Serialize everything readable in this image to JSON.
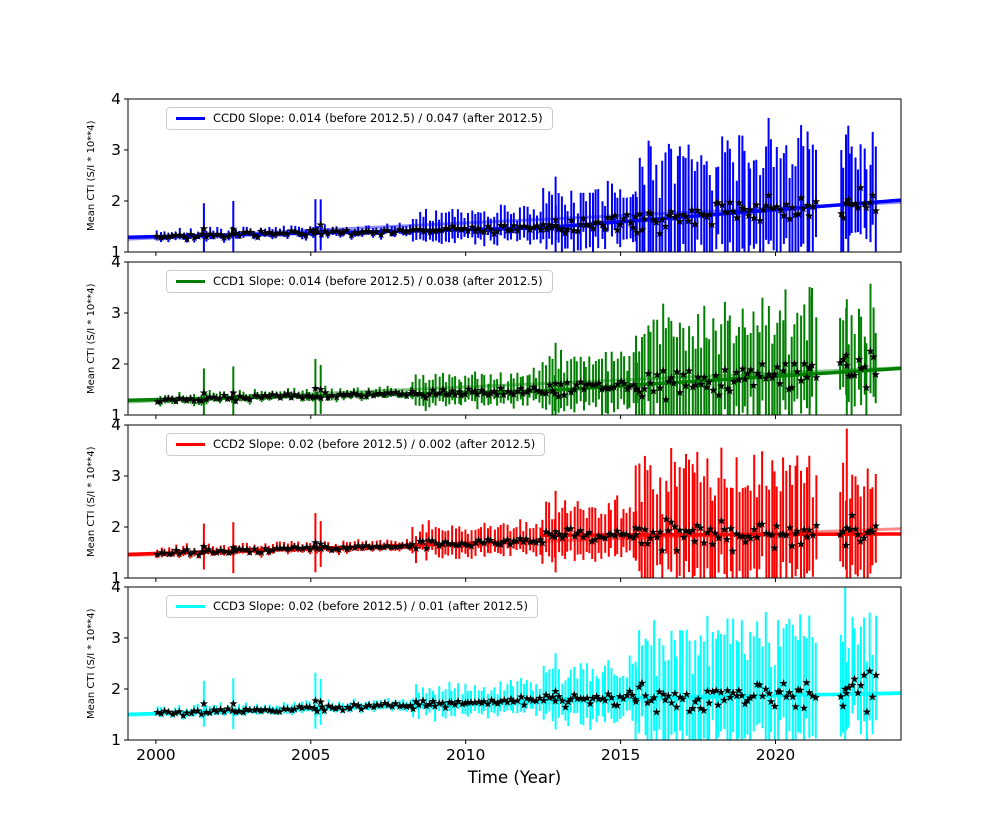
{
  "chart_data": {
    "type": "errorbar",
    "title": "",
    "xlabel": "Time (Year)",
    "ylabel": "Mean CTI (S/I * 10**4)",
    "x_ticks": [
      2000,
      2005,
      2010,
      2015,
      2020
    ],
    "y_ticks": [
      1,
      2,
      3,
      4
    ],
    "x_range": [
      1999.1,
      2024.05
    ],
    "y_range": [
      1,
      4
    ],
    "grid": false,
    "legend_position": "upper left",
    "break_year": 2012.5,
    "data_gap_years": [
      2021.3,
      2022.1
    ],
    "marker": "star",
    "marker_color": "#000000",
    "eras": [
      {
        "t0": 2000.05,
        "t1": 2008.3,
        "step": 0.12,
        "err": 0.09,
        "jitter": 0.035
      },
      {
        "t0": 2008.3,
        "t1": 2012.5,
        "step": 0.105,
        "err": 0.26,
        "jitter": 0.05
      },
      {
        "t0": 2012.5,
        "t1": 2015.5,
        "step": 0.1,
        "err": 0.45,
        "jitter": 0.09
      },
      {
        "t0": 2015.5,
        "t1": 2021.3,
        "step": 0.095,
        "err": 0.95,
        "jitter": 0.19
      },
      {
        "t0": 2022.1,
        "t1": 2023.25,
        "step": 0.095,
        "err": 0.85,
        "jitter": 0.25
      }
    ],
    "panels": [
      {
        "name": "CCD0",
        "color": "#0000FF",
        "legend": "CCD0 Slope: 0.014 (before 2012.5) / 0.047 (after 2012.5)",
        "slope_before": 0.014,
        "slope_after": 0.047,
        "fit_before": {
          "y2000": 1.3,
          "slope": 0.014
        },
        "fit_after": {
          "y_at_break": 1.475,
          "slope": 0.047
        },
        "fit_overall": {
          "y2000": 1.28,
          "slope": 0.029
        },
        "seed": 7,
        "spikes": [
          {
            "t": 2001.55,
            "e": 0.5
          },
          {
            "t": 2002.5,
            "e": 0.55
          },
          {
            "t": 2005.15,
            "e": 0.6
          },
          {
            "t": 2005.32,
            "e": 0.5
          },
          {
            "t": 2012.9,
            "e": 0.85
          },
          {
            "t": 2022.35,
            "e": 1.45
          }
        ]
      },
      {
        "name": "CCD1",
        "color": "#008000",
        "legend": "CCD1 Slope: 0.014 (before 2012.5) / 0.038 (after 2012.5)",
        "slope_before": 0.014,
        "slope_after": 0.038,
        "fit_before": {
          "y2000": 1.3,
          "slope": 0.014
        },
        "fit_after": {
          "y_at_break": 1.475,
          "slope": 0.038
        },
        "fit_overall": {
          "y2000": 1.28,
          "slope": 0.027
        },
        "seed": 13,
        "spikes": [
          {
            "t": 2001.55,
            "e": 0.48
          },
          {
            "t": 2002.5,
            "e": 0.52
          },
          {
            "t": 2005.15,
            "e": 0.58
          },
          {
            "t": 2005.32,
            "e": 0.48
          },
          {
            "t": 2012.9,
            "e": 0.8
          },
          {
            "t": 2021.1,
            "e": 1.6
          },
          {
            "t": 2022.3,
            "e": 1.3
          }
        ]
      },
      {
        "name": "CCD2",
        "color": "#FF0000",
        "legend": "CCD2 Slope: 0.02 (before 2012.5) / 0.002 (after 2012.5)",
        "slope_before": 0.02,
        "slope_after": 0.002,
        "fit_before": {
          "y2000": 1.48,
          "slope": 0.02
        },
        "fit_after": {
          "y_at_break": 1.84,
          "slope": 0.002
        },
        "fit_overall": {
          "y2000": 1.46,
          "slope": 0.021
        },
        "seed": 21,
        "spikes": [
          {
            "t": 2001.55,
            "e": 0.45
          },
          {
            "t": 2002.5,
            "e": 0.5
          },
          {
            "t": 2005.15,
            "e": 0.58
          },
          {
            "t": 2005.32,
            "e": 0.45
          },
          {
            "t": 2012.9,
            "e": 0.8
          },
          {
            "t": 2022.3,
            "e": 1.95
          }
        ]
      },
      {
        "name": "CCD3",
        "color": "#00FFFF",
        "legend": "CCD3 Slope: 0.02 (before 2012.5) / 0.01 (after 2012.5)",
        "slope_before": 0.02,
        "slope_after": 0.01,
        "fit_before": {
          "y2000": 1.52,
          "slope": 0.02
        },
        "fit_after": {
          "y_at_break": 1.8,
          "slope": 0.01
        },
        "fit_overall": {
          "y2000": 1.5,
          "slope": 0.018
        },
        "seed": 42,
        "spikes": [
          {
            "t": 2001.55,
            "e": 0.45
          },
          {
            "t": 2002.5,
            "e": 0.5
          },
          {
            "t": 2005.15,
            "e": 0.55
          },
          {
            "t": 2005.32,
            "e": 0.45
          },
          {
            "t": 2012.9,
            "e": 0.75
          },
          {
            "t": 2022.25,
            "e": 2.15
          }
        ]
      }
    ]
  }
}
